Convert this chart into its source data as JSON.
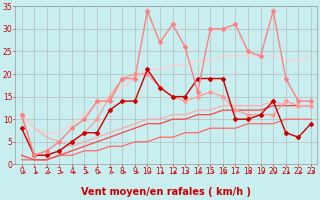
{
  "xlabel": "Vent moyen/en rafales ( km/h )",
  "bg_color": "#c8eef0",
  "grid_color": "#b0b0b0",
  "xlim": [
    -0.5,
    23.5
  ],
  "ylim": [
    0,
    35
  ],
  "yticks": [
    0,
    5,
    10,
    15,
    20,
    25,
    30,
    35
  ],
  "xticks": [
    0,
    1,
    2,
    3,
    4,
    5,
    6,
    7,
    8,
    9,
    10,
    11,
    12,
    13,
    14,
    15,
    16,
    17,
    18,
    19,
    20,
    21,
    22,
    23
  ],
  "series": [
    {
      "x": [
        0,
        1,
        2,
        3,
        4,
        5,
        6,
        7,
        8,
        9,
        10,
        11,
        12,
        13,
        14,
        15,
        16,
        17,
        18,
        19,
        20,
        21,
        22,
        23
      ],
      "y": [
        11,
        8,
        6,
        5,
        4,
        5,
        6,
        7,
        8,
        9,
        10,
        10,
        11,
        11,
        12,
        12,
        13,
        13,
        13,
        13,
        14,
        13,
        13,
        13
      ],
      "color": "#ffaaaa",
      "lw": 0.9,
      "marker": null
    },
    {
      "x": [
        0,
        1,
        2,
        3,
        4,
        5,
        6,
        7,
        8,
        9,
        10,
        11,
        12,
        13,
        14,
        15,
        16,
        17,
        18,
        19,
        20,
        21,
        22,
        23
      ],
      "y": [
        11,
        8,
        7,
        7,
        9,
        11,
        13,
        15,
        17,
        19,
        21,
        21,
        22,
        22,
        23,
        23,
        24,
        24,
        24,
        24,
        24,
        23,
        23,
        24
      ],
      "color": "#ffcccc",
      "lw": 0.9,
      "marker": null
    },
    {
      "x": [
        0,
        1,
        2,
        3,
        4,
        5,
        6,
        7,
        8,
        9,
        10,
        11,
        12,
        13,
        14,
        15,
        16,
        17,
        18,
        19,
        20,
        21,
        22,
        23
      ],
      "y": [
        11,
        2,
        2,
        3,
        5,
        7,
        10,
        15,
        19,
        20,
        20,
        17,
        15,
        14,
        15,
        16,
        15,
        12,
        11,
        11,
        11,
        14,
        13,
        13
      ],
      "color": "#ff9999",
      "lw": 0.9,
      "marker": "D",
      "ms": 2.0
    },
    {
      "x": [
        0,
        1,
        2,
        3,
        4,
        5,
        6,
        7,
        8,
        9,
        10,
        11,
        12,
        13,
        14,
        15,
        16,
        17,
        18,
        19,
        20,
        21,
        22,
        23
      ],
      "y": [
        1,
        1,
        1,
        2,
        2,
        3,
        3,
        4,
        4,
        5,
        5,
        6,
        6,
        7,
        7,
        8,
        8,
        8,
        9,
        9,
        9,
        10,
        10,
        10
      ],
      "color": "#ff6666",
      "lw": 0.9,
      "marker": null
    },
    {
      "x": [
        0,
        1,
        2,
        3,
        4,
        5,
        6,
        7,
        8,
        9,
        10,
        11,
        12,
        13,
        14,
        15,
        16,
        17,
        18,
        19,
        20,
        21,
        22,
        23
      ],
      "y": [
        2,
        1,
        1,
        2,
        3,
        4,
        5,
        6,
        7,
        8,
        9,
        9,
        10,
        10,
        11,
        11,
        12,
        12,
        12,
        12,
        13,
        13,
        13,
        13
      ],
      "color": "#ff4444",
      "lw": 0.9,
      "marker": null
    },
    {
      "x": [
        0,
        1,
        2,
        3,
        4,
        5,
        6,
        7,
        8,
        9,
        10,
        11,
        12,
        13,
        14,
        15,
        16,
        17,
        18,
        19,
        20,
        21,
        22,
        23
      ],
      "y": [
        8,
        2,
        2,
        3,
        5,
        7,
        7,
        12,
        14,
        14,
        21,
        17,
        15,
        15,
        19,
        19,
        19,
        10,
        10,
        11,
        14,
        7,
        6,
        9
      ],
      "color": "#cc0000",
      "lw": 1.0,
      "marker": "D",
      "ms": 2.0
    },
    {
      "x": [
        0,
        1,
        2,
        3,
        4,
        5,
        6,
        7,
        8,
        9,
        10,
        11,
        12,
        13,
        14,
        15,
        16,
        17,
        18,
        19,
        20,
        21,
        22,
        23
      ],
      "y": [
        11,
        2,
        3,
        5,
        8,
        10,
        14,
        14,
        19,
        19,
        34,
        27,
        31,
        26,
        16,
        30,
        30,
        31,
        25,
        24,
        34,
        19,
        14,
        14
      ],
      "color": "#ff8080",
      "lw": 1.0,
      "marker": "D",
      "ms": 2.0
    }
  ],
  "arrow_color": "#dd0000",
  "xlabel_color": "#cc0000",
  "xlabel_fontsize": 7,
  "tick_color": "#cc0000",
  "tick_fontsize": 5.5
}
